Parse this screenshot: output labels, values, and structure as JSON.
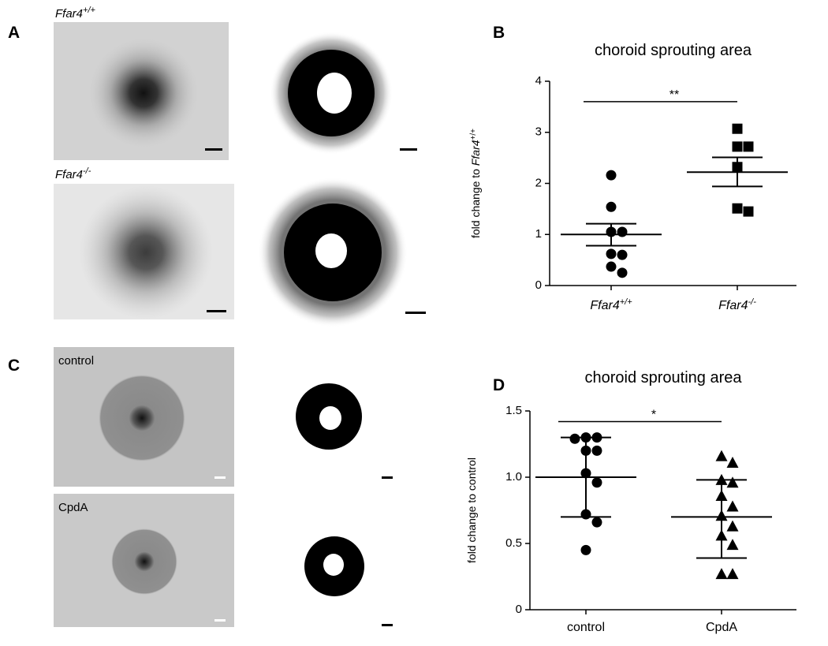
{
  "panel_labels": [
    "A",
    "B",
    "C",
    "D"
  ],
  "images": [
    {
      "label": [
        "Ffar4",
        "+/+"
      ]
    },
    {
      "label": [
        "Ffar4",
        "-/-"
      ]
    },
    {
      "label": [
        "control"
      ]
    },
    {
      "label": [
        "CpdA"
      ]
    }
  ],
  "chart_data": [
    {
      "type": "dot",
      "title": "choroid sprouting area",
      "y_label": [
        "fold change to ",
        "Ffar4",
        "+/+"
      ],
      "categories": [
        "Ffar4",
        "Ffar4"
      ],
      "category_superscripts": [
        "+/+",
        "-/-"
      ],
      "italic_categories": true,
      "markers": [
        "circle",
        "square"
      ],
      "color": "#000000",
      "values": [
        [
          2.16,
          1.54,
          1.05,
          1.05,
          0.62,
          0.6,
          0.37,
          0.25
        ],
        [
          3.07,
          2.72,
          2.72,
          2.32,
          1.51,
          1.45
        ]
      ],
      "mean": [
        1.0,
        2.22
      ],
      "upper": [
        1.21,
        2.51
      ],
      "lower": [
        0.78,
        1.94
      ],
      "ylim": [
        0,
        4
      ],
      "yticks": [
        0,
        1,
        2,
        3,
        4
      ],
      "significance": {
        "label": "**",
        "y": 3.6
      }
    },
    {
      "type": "dot",
      "title": "choroid sprouting area",
      "y_label": [
        "fold change to control"
      ],
      "categories": [
        "control",
        "CpdA"
      ],
      "italic_categories": false,
      "markers": [
        "circle",
        "triangle"
      ],
      "color": "#000000",
      "values": [
        [
          1.3,
          1.3,
          1.29,
          1.2,
          1.2,
          1.03,
          0.96,
          0.72,
          0.66,
          0.45
        ],
        [
          1.16,
          1.11,
          0.98,
          0.96,
          0.86,
          0.78,
          0.71,
          0.63,
          0.56,
          0.49,
          0.27,
          0.27
        ]
      ],
      "mean": [
        1.0,
        0.7
      ],
      "upper": [
        1.3,
        0.98
      ],
      "lower": [
        0.7,
        0.39
      ],
      "ylim": [
        0,
        1.5
      ],
      "yticks": [
        0,
        0.5,
        {
          "value": 1,
          "label": "1.0"
        },
        1.5
      ],
      "significance": {
        "label": "*",
        "y": 1.42
      }
    }
  ]
}
